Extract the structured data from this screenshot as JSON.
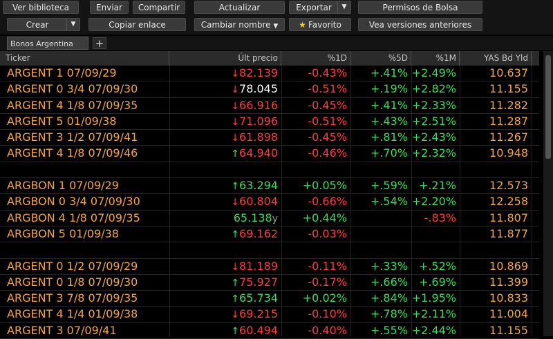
{
  "toolbar": {
    "ver_biblioteca": "Ver biblioteca",
    "enviar": "Enviar",
    "compartir": "Compartir",
    "actualizar": "Actualizar",
    "exportar": "Exportar",
    "permisos": "Permisos de Bolsa",
    "crear": "Crear",
    "copiar_enlace": "Copiar enlace",
    "cambiar_nombre": "Cambiar nombre",
    "favorito": "Favorito",
    "versiones": "Vea versiones anteriores"
  },
  "tabs": [
    {
      "label": "Bonos Argentina"
    }
  ],
  "columns": [
    "Ticker",
    "Últ precio",
    "%1D",
    "%5D",
    "%1M",
    "YAS Bd Yld"
  ],
  "rows": [
    {
      "ticker": "ARGENT 1 07/09/29",
      "dir": "down",
      "price": "82.139",
      "price_color": "down",
      "d1": "-0.43%",
      "d1c": "down",
      "d5": "+.41%",
      "d5c": "up",
      "m1": "+2.49%",
      "m1c": "up",
      "yld": "10.637"
    },
    {
      "ticker": "ARGENT 0 3/4 07/09/30",
      "dir": "down",
      "price": "78.045",
      "price_color": "white",
      "d1": "-0.51%",
      "d1c": "down",
      "d5": "+.19%",
      "d5c": "up",
      "m1": "+2.82%",
      "m1c": "up",
      "yld": "11.155"
    },
    {
      "ticker": "ARGENT 4 1/8 07/09/35",
      "dir": "down",
      "price": "66.916",
      "price_color": "down",
      "d1": "-0.45%",
      "d1c": "down",
      "d5": "+.41%",
      "d5c": "up",
      "m1": "+2.33%",
      "m1c": "up",
      "yld": "11.282"
    },
    {
      "ticker": "ARGENT 5 01/09/38",
      "dir": "down",
      "price": "71.096",
      "price_color": "down",
      "d1": "-0.51%",
      "d1c": "down",
      "d5": "+.43%",
      "d5c": "up",
      "m1": "+2.51%",
      "m1c": "up",
      "yld": "11.287"
    },
    {
      "ticker": "ARGENT 3 1/2 07/09/41",
      "dir": "down",
      "price": "61.898",
      "price_color": "down",
      "d1": "-0.45%",
      "d1c": "down",
      "d5": "+.81%",
      "d5c": "up",
      "m1": "+2.43%",
      "m1c": "up",
      "yld": "11.267"
    },
    {
      "ticker": "ARGENT 4 1/8 07/09/46",
      "dir": "up",
      "price": "64.940",
      "price_color": "down",
      "d1": "-0.46%",
      "d1c": "down",
      "d5": "+.70%",
      "d5c": "up",
      "m1": "+2.32%",
      "m1c": "up",
      "yld": "10.948"
    },
    {
      "ticker": "",
      "dir": "",
      "price": "",
      "price_color": "",
      "d1": "",
      "d1c": "",
      "d5": "",
      "d5c": "",
      "m1": "",
      "m1c": "",
      "yld": ""
    },
    {
      "ticker": "ARGBON 1 07/09/29",
      "dir": "up",
      "price": "63.294",
      "price_color": "up",
      "d1": "+0.05%",
      "d1c": "up",
      "d5": "+.59%",
      "d5c": "up",
      "m1": "+.21%",
      "m1c": "up",
      "yld": "12.573"
    },
    {
      "ticker": "ARGBON 0 3/4 07/09/30",
      "dir": "down",
      "price": "60.804",
      "price_color": "down",
      "d1": "-0.66%",
      "d1c": "down",
      "d5": "+.54%",
      "d5c": "up",
      "m1": "+2.20%",
      "m1c": "up",
      "yld": "12.258"
    },
    {
      "ticker": "ARGBON 4 1/8 07/09/35",
      "dir": "",
      "price": "65.138",
      "price_color": "up",
      "suffix": "y",
      "d1": "+0.44%",
      "d1c": "up",
      "d5": "",
      "d5c": "",
      "m1": "-.83%",
      "m1c": "down",
      "yld": "11.807"
    },
    {
      "ticker": "ARGBON 5 01/09/38",
      "dir": "up",
      "price": "69.162",
      "price_color": "down",
      "d1": "-0.03%",
      "d1c": "down",
      "d5": "",
      "d5c": "",
      "m1": "",
      "m1c": "",
      "yld": "11.877"
    },
    {
      "ticker": "",
      "dir": "",
      "price": "",
      "price_color": "",
      "d1": "",
      "d1c": "",
      "d5": "",
      "d5c": "",
      "m1": "",
      "m1c": "",
      "yld": ""
    },
    {
      "ticker": "ARGENT 0 1/2 07/09/29",
      "dir": "down",
      "price": "81.189",
      "price_color": "down",
      "d1": "-0.11%",
      "d1c": "down",
      "d5": "+.33%",
      "d5c": "up",
      "m1": "+.52%",
      "m1c": "up",
      "yld": "10.869"
    },
    {
      "ticker": "ARGENT 0 1/8 07/09/30",
      "dir": "up",
      "price": "75.927",
      "price_color": "down",
      "d1": "-0.17%",
      "d1c": "down",
      "d5": "+.66%",
      "d5c": "up",
      "m1": "+.69%",
      "m1c": "up",
      "yld": "11.399"
    },
    {
      "ticker": "ARGENT 3 7/8 07/09/35",
      "dir": "up",
      "price": "65.734",
      "price_color": "up",
      "d1": "+0.02%",
      "d1c": "up",
      "d5": "+.84%",
      "d5c": "up",
      "m1": "+1.95%",
      "m1c": "up",
      "yld": "10.833"
    },
    {
      "ticker": "ARGENT 4 1/4 01/09/38",
      "dir": "down",
      "price": "69.215",
      "price_color": "down",
      "d1": "-0.10%",
      "d1c": "down",
      "d5": "+.78%",
      "d5c": "up",
      "m1": "+2.11%",
      "m1c": "up",
      "yld": "11.004"
    },
    {
      "ticker": "ARGENT 3 07/09/41",
      "dir": "up",
      "price": "60.494",
      "price_color": "down",
      "d1": "-0.40%",
      "d1c": "down",
      "d5": "+.55%",
      "d5c": "up",
      "m1": "+2.44%",
      "m1c": "up",
      "yld": "11.155"
    }
  ]
}
